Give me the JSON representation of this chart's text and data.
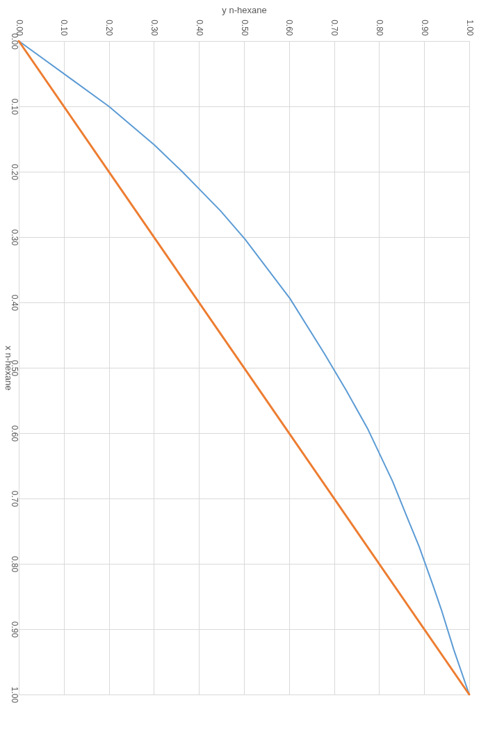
{
  "chart_data": {
    "type": "line",
    "xlabel": "y n-hexane",
    "ylabel": "x n-hexane",
    "xlim": [
      0,
      1
    ],
    "ylim": [
      1,
      0
    ],
    "xticks": [
      {
        "value": 0,
        "label": "0.00"
      },
      {
        "value": 0.1,
        "label": "0.10"
      },
      {
        "value": 0.2,
        "label": "0.20"
      },
      {
        "value": 0.3,
        "label": "0.30"
      },
      {
        "value": 0.4,
        "label": "0.40"
      },
      {
        "value": 0.5,
        "label": "0.50"
      },
      {
        "value": 0.6,
        "label": "0.60"
      },
      {
        "value": 0.7,
        "label": "0.70"
      },
      {
        "value": 0.8,
        "label": "0.80"
      },
      {
        "value": 0.9,
        "label": "0.90"
      },
      {
        "value": 1,
        "label": "1.00"
      }
    ],
    "yticks": [
      {
        "value": 0,
        "label": "0.00"
      },
      {
        "value": 0.1,
        "label": "0.10"
      },
      {
        "value": 0.2,
        "label": "0.20"
      },
      {
        "value": 0.3,
        "label": "0.30"
      },
      {
        "value": 0.4,
        "label": "0.40"
      },
      {
        "value": 0.5,
        "label": "0.50"
      },
      {
        "value": 0.6,
        "label": "0.60"
      },
      {
        "value": 0.7,
        "label": "0.70"
      },
      {
        "value": 0.8,
        "label": "0.80"
      },
      {
        "value": 0.9,
        "label": "0.90"
      },
      {
        "value": 1,
        "label": "1.00"
      }
    ],
    "grid": true,
    "marker": "none",
    "line_style": "solid",
    "series": [
      {
        "color": "#5b9bd5",
        "x": [
          0,
          0.12,
          0.2,
          0.301,
          0.363,
          0.448,
          0.502,
          0.602,
          0.679,
          0.728,
          0.775,
          0.83,
          0.864,
          0.889,
          0.92,
          0.938,
          0.966,
          1
        ],
        "values": [
          0,
          0.06,
          0.1,
          0.159,
          0.2,
          0.26,
          0.303,
          0.394,
          0.479,
          0.536,
          0.594,
          0.674,
          0.732,
          0.774,
          0.834,
          0.87,
          0.932,
          1
        ]
      },
      {
        "color": "#ed7d31",
        "x": [
          0,
          1
        ],
        "values": [
          0,
          1
        ]
      }
    ]
  }
}
